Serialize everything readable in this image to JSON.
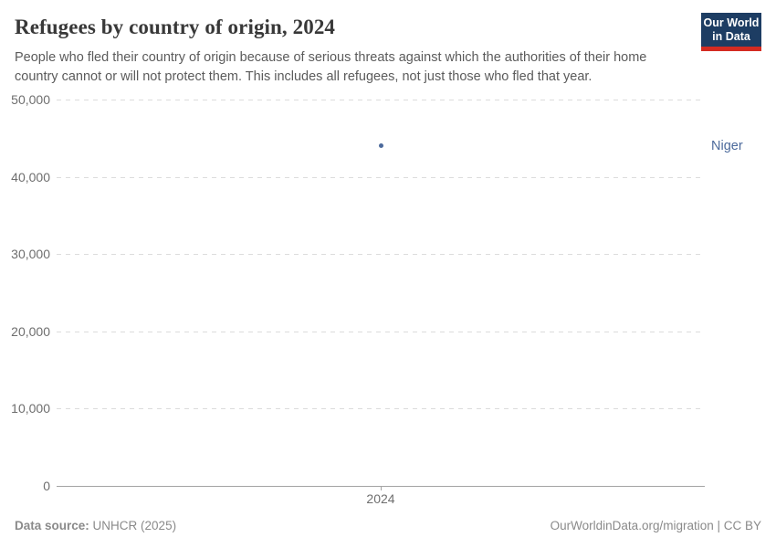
{
  "header": {
    "title": "Refugees by country of origin, 2024",
    "subtitle": "People who fled their country of origin because of serious threats against which the authorities of their home country cannot or will not protect them. This includes all refugees, not just those who fled that year.",
    "logo": {
      "line1": "Our World",
      "line2": "in Data"
    }
  },
  "chart_data": {
    "type": "scatter",
    "title": "Refugees by country of origin, 2024",
    "x": [
      2024
    ],
    "series": [
      {
        "name": "Niger",
        "values": [
          44000
        ],
        "color": "#4C6A9C"
      }
    ],
    "xlabel": "",
    "ylabel": "",
    "ylim": [
      0,
      50000
    ],
    "yticks": [
      0,
      10000,
      20000,
      30000,
      40000,
      50000
    ],
    "ytick_labels": [
      "0",
      "10,000",
      "20,000",
      "30,000",
      "40,000",
      "50,000"
    ],
    "xtick_labels": [
      "2024"
    ],
    "grid": "horizontal-dashed",
    "legend_position": "right-of-plot"
  },
  "footer": {
    "source_label": "Data source:",
    "source_value": "UNHCR (2025)",
    "link": "OurWorldinData.org/migration | CC BY"
  },
  "colors": {
    "accent_series": "#4C6A9C",
    "logo_bg": "#1d3d63",
    "logo_bar": "#d42b21",
    "axis_text": "#6e6e6e",
    "gridline": "#dcdcdc"
  }
}
